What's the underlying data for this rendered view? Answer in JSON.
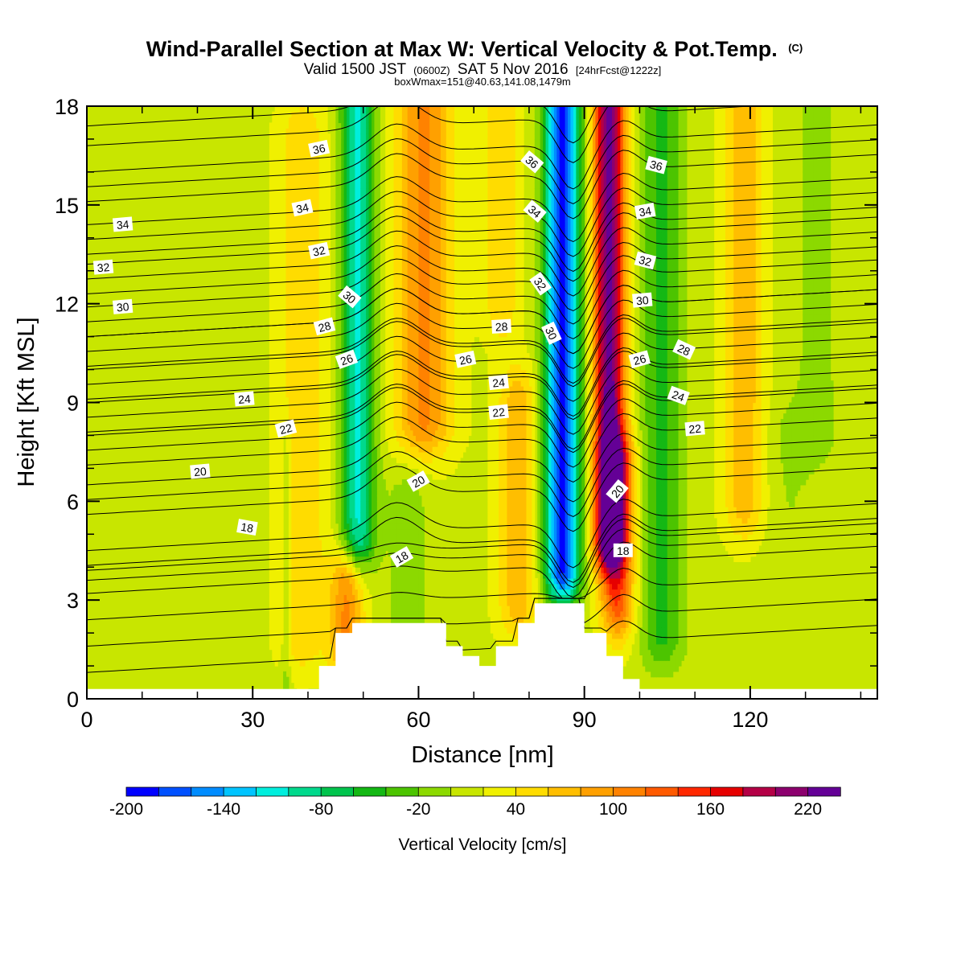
{
  "titles": {
    "main": "Wind-Parallel Section at Max W: Vertical Velocity & Pot.Temp.",
    "main_suffix": "(C)",
    "sub_pre": "Valid 1500 JST",
    "sub_small": "(0600Z)",
    "sub_post": "SAT 5 Nov 2016",
    "sub_fcst": "[24hrFcst@1222z]",
    "box": "boxWmax=151@40.63,141.08,1479m"
  },
  "chart_data": {
    "type": "heatmap",
    "xlabel": "Distance [nm]",
    "ylabel": "Height [Kft MSL]",
    "xlim": [
      0,
      143
    ],
    "ylim": [
      0,
      18
    ],
    "xticks": [
      "0",
      "30",
      "60",
      "90",
      "120"
    ],
    "yticks": [
      "0",
      "3",
      "6",
      "9",
      "12",
      "15",
      "18"
    ],
    "colorbar": {
      "title": "Vertical Velocity [cm/s]",
      "levels": [
        -200,
        -180,
        -160,
        -140,
        -120,
        -100,
        -80,
        -60,
        -40,
        -20,
        0,
        20,
        40,
        60,
        80,
        100,
        120,
        140,
        160,
        180,
        200,
        220,
        240
      ],
      "tick_labels": [
        "-200",
        "-140",
        "-80",
        "-20",
        "40",
        "100",
        "160",
        "220"
      ],
      "tick_values": [
        -200,
        -140,
        -80,
        -20,
        40,
        100,
        160,
        220
      ],
      "colors": [
        "#0000ff",
        "#0050ff",
        "#008cff",
        "#00c4ff",
        "#00eedd",
        "#00d98c",
        "#00c44d",
        "#14b814",
        "#4cc400",
        "#8cd900",
        "#c8e600",
        "#f0f000",
        "#ffdc00",
        "#ffbe00",
        "#ffa000",
        "#ff8200",
        "#ff5a00",
        "#ff2800",
        "#e60000",
        "#b40046",
        "#8c006e",
        "#640096"
      ]
    },
    "terrain": [
      [
        0,
        0.3
      ],
      [
        42,
        0.3
      ],
      [
        42,
        1
      ],
      [
        45,
        1
      ],
      [
        45,
        2
      ],
      [
        48,
        2
      ],
      [
        48,
        2.3
      ],
      [
        65,
        2.3
      ],
      [
        65,
        1.6
      ],
      [
        68,
        1.6
      ],
      [
        68,
        1.3
      ],
      [
        71,
        1.3
      ],
      [
        71,
        1
      ],
      [
        74,
        1
      ],
      [
        74,
        1.6
      ],
      [
        78,
        1.6
      ],
      [
        78,
        2.3
      ],
      [
        81,
        2.3
      ],
      [
        81,
        2.9
      ],
      [
        90,
        2.9
      ],
      [
        90,
        2
      ],
      [
        94,
        2
      ],
      [
        94,
        1.3
      ],
      [
        97,
        1.3
      ],
      [
        97,
        0.6
      ],
      [
        100,
        0.6
      ],
      [
        100,
        0.3
      ],
      [
        143,
        0.3
      ]
    ],
    "w_features": [
      {
        "x": 49,
        "zbot": 5,
        "ztop": 18,
        "halfwidth": 3,
        "w": -120
      },
      {
        "x": 86,
        "zbot": 4,
        "ztop": 18,
        "halfwidth": 3.2,
        "w": -200
      },
      {
        "x": 94.5,
        "zbot": 5,
        "ztop": 18,
        "halfwidth": 2.8,
        "w": 220
      },
      {
        "x": 61,
        "zbot": 8.5,
        "ztop": 18,
        "halfwidth": 5,
        "w": 90
      },
      {
        "x": 39,
        "zbot": 2,
        "ztop": 17,
        "halfwidth": 4,
        "w": 45
      },
      {
        "x": 47,
        "zbot": 1.8,
        "ztop": 3.5,
        "halfwidth": 3,
        "w": 90
      },
      {
        "x": 78,
        "zbot": 3,
        "ztop": 9,
        "halfwidth": 3.5,
        "w": 60
      },
      {
        "x": 75,
        "zbot": 12,
        "ztop": 18,
        "halfwidth": 3,
        "w": 45
      },
      {
        "x": 104,
        "zbot": 2,
        "ztop": 18,
        "halfwidth": 4,
        "w": -60
      },
      {
        "x": 119,
        "zbot": 6,
        "ztop": 18,
        "halfwidth": 3.5,
        "w": 60
      },
      {
        "x": 96,
        "zbot": 3,
        "ztop": 7,
        "halfwidth": 3,
        "w": 120
      },
      {
        "x": 132,
        "zbot": 8,
        "ztop": 18,
        "halfwidth": 5,
        "w": -20
      },
      {
        "x": 8,
        "zbot": 14,
        "ztop": 18,
        "halfwidth": 10,
        "w": -15
      },
      {
        "x": 36,
        "zbot": 0.3,
        "ztop": 7.5,
        "halfwidth": 0.9,
        "w": -25
      },
      {
        "x": 58,
        "zbot": 2.3,
        "ztop": 6,
        "halfwidth": 4,
        "w": -25
      },
      {
        "x": 127,
        "zbot": 3,
        "ztop": 8,
        "halfwidth": 5,
        "w": -15
      }
    ],
    "theta_contours": [
      {
        "theta": 18,
        "base": 4.5
      },
      {
        "theta": 20,
        "base": 6.5
      },
      {
        "theta": 22,
        "base": 8.0
      },
      {
        "theta": 24,
        "base": 9.0
      },
      {
        "theta": 26,
        "base": 10.0
      },
      {
        "theta": 28,
        "base": 11.0
      },
      {
        "theta": 30,
        "base": 11.9
      },
      {
        "theta": 32,
        "base": 13.2
      },
      {
        "theta": 34,
        "base": 14.4
      },
      {
        "theta": 36,
        "base": 16.0
      }
    ],
    "contour_labels": [
      {
        "text": "36",
        "x": 42,
        "z": 16.7,
        "angle": -12
      },
      {
        "text": "34",
        "x": 6.5,
        "z": 14.4,
        "angle": -5
      },
      {
        "text": "34",
        "x": 39,
        "z": 14.9,
        "angle": -12
      },
      {
        "text": "32",
        "x": 3,
        "z": 13.1,
        "angle": -5
      },
      {
        "text": "32",
        "x": 42,
        "z": 13.6,
        "angle": -12
      },
      {
        "text": "30",
        "x": 6.5,
        "z": 11.9,
        "angle": -5
      },
      {
        "text": "30",
        "x": 47.5,
        "z": 12.2,
        "angle": 40
      },
      {
        "text": "28",
        "x": 43,
        "z": 11.3,
        "angle": -15
      },
      {
        "text": "26",
        "x": 47,
        "z": 10.3,
        "angle": -20
      },
      {
        "text": "26",
        "x": 68.5,
        "z": 10.3,
        "angle": -12
      },
      {
        "text": "24",
        "x": 28.5,
        "z": 9.1,
        "angle": -5
      },
      {
        "text": "24",
        "x": 74.5,
        "z": 9.6,
        "angle": -6
      },
      {
        "text": "22",
        "x": 36,
        "z": 8.2,
        "angle": -15
      },
      {
        "text": "22",
        "x": 74.5,
        "z": 8.7,
        "angle": -6
      },
      {
        "text": "20",
        "x": 20.5,
        "z": 6.9,
        "angle": -5
      },
      {
        "text": "20",
        "x": 60,
        "z": 6.6,
        "angle": -30
      },
      {
        "text": "18",
        "x": 29,
        "z": 5.2,
        "angle": 10
      },
      {
        "text": "18",
        "x": 57,
        "z": 4.3,
        "angle": -30
      },
      {
        "text": "36",
        "x": 80.5,
        "z": 16.3,
        "angle": 40
      },
      {
        "text": "34",
        "x": 81,
        "z": 14.8,
        "angle": 40
      },
      {
        "text": "32",
        "x": 82,
        "z": 12.6,
        "angle": 55
      },
      {
        "text": "30",
        "x": 84,
        "z": 11.1,
        "angle": 65
      },
      {
        "text": "28",
        "x": 75,
        "z": 11.3,
        "angle": -3
      },
      {
        "text": "36",
        "x": 103,
        "z": 16.2,
        "angle": 15
      },
      {
        "text": "34",
        "x": 101,
        "z": 14.8,
        "angle": -10
      },
      {
        "text": "32",
        "x": 101,
        "z": 13.3,
        "angle": 15
      },
      {
        "text": "30",
        "x": 100.5,
        "z": 12.1,
        "angle": -5
      },
      {
        "text": "28",
        "x": 108,
        "z": 10.6,
        "angle": 25
      },
      {
        "text": "26",
        "x": 100,
        "z": 10.3,
        "angle": -15
      },
      {
        "text": "24",
        "x": 107,
        "z": 9.2,
        "angle": 20
      },
      {
        "text": "22",
        "x": 110,
        "z": 8.2,
        "angle": -5
      },
      {
        "text": "20",
        "x": 96,
        "z": 6.3,
        "angle": -50
      },
      {
        "text": "18",
        "x": 97,
        "z": 4.5,
        "angle": 0
      }
    ]
  }
}
